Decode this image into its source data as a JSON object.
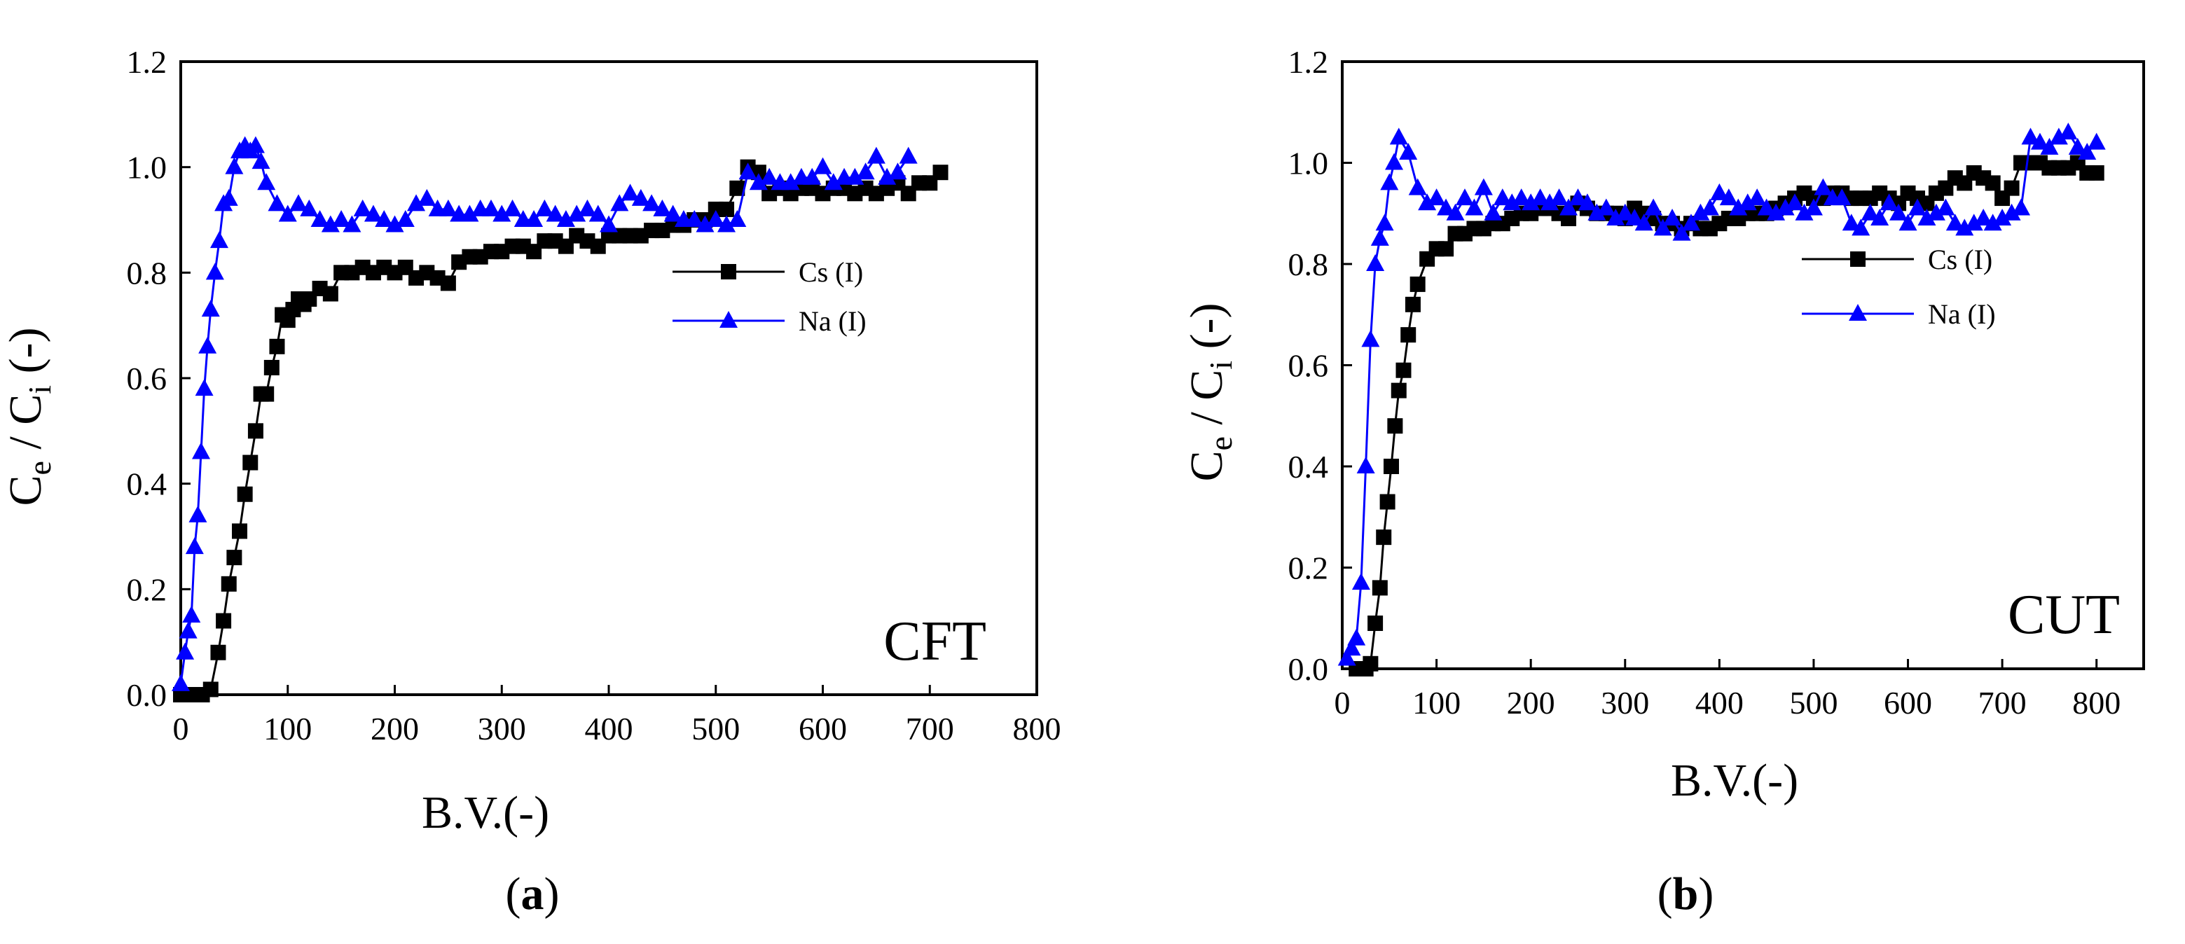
{
  "figure": {
    "panels": [
      {
        "caption": "(a)",
        "caption_letter": "a",
        "annotation": "CFT"
      },
      {
        "caption": "(b)",
        "caption_letter": "b",
        "annotation": "CUT"
      }
    ]
  },
  "colors": {
    "cs": "#000000",
    "na": "#0000ff"
  },
  "chart_data": [
    {
      "type": "line",
      "title": "",
      "annotation": "CFT",
      "xlabel": "B.V.(-)",
      "ylabel": {
        "base1": "C",
        "sub1": "e",
        "mid": " / C",
        "sub2": "i",
        "tail": " (-)"
      },
      "xlim": [
        0,
        800
      ],
      "ylim": [
        0.0,
        1.2
      ],
      "xticks": [
        0,
        100,
        200,
        300,
        400,
        500,
        600,
        700,
        800
      ],
      "yticks": [
        0.0,
        0.2,
        0.4,
        0.6,
        0.8,
        1.0,
        1.2
      ],
      "xtick_labels": [
        "0",
        "100",
        "200",
        "300",
        "400",
        "500",
        "600",
        "700",
        "800"
      ],
      "ytick_labels": [
        "0.0",
        "0.2",
        "0.4",
        "0.6",
        "0.8",
        "1.0",
        "1.2"
      ],
      "legend_position": "center-right",
      "series": [
        {
          "name": "Cs (I)",
          "color": "#000000",
          "marker": "square",
          "x": [
            0,
            10,
            20,
            28,
            35,
            40,
            45,
            50,
            55,
            60,
            65,
            70,
            75,
            80,
            85,
            90,
            95,
            100,
            105,
            110,
            115,
            120,
            130,
            140,
            150,
            160,
            170,
            180,
            190,
            200,
            210,
            220,
            230,
            240,
            250,
            260,
            270,
            280,
            290,
            300,
            310,
            320,
            330,
            340,
            350,
            360,
            370,
            380,
            390,
            400,
            410,
            420,
            430,
            440,
            450,
            460,
            470,
            480,
            490,
            500,
            510,
            520,
            530,
            540,
            550,
            560,
            570,
            580,
            590,
            600,
            610,
            620,
            630,
            640,
            650,
            660,
            670,
            680,
            690,
            700,
            710
          ],
          "y": [
            0.0,
            0.0,
            0.0,
            0.01,
            0.08,
            0.14,
            0.21,
            0.26,
            0.31,
            0.38,
            0.44,
            0.5,
            0.57,
            0.57,
            0.62,
            0.66,
            0.72,
            0.71,
            0.73,
            0.75,
            0.74,
            0.75,
            0.77,
            0.76,
            0.8,
            0.8,
            0.81,
            0.8,
            0.81,
            0.8,
            0.81,
            0.79,
            0.8,
            0.79,
            0.78,
            0.82,
            0.83,
            0.83,
            0.84,
            0.84,
            0.85,
            0.85,
            0.84,
            0.86,
            0.86,
            0.85,
            0.87,
            0.86,
            0.85,
            0.87,
            0.87,
            0.87,
            0.87,
            0.88,
            0.88,
            0.89,
            0.89,
            0.9,
            0.9,
            0.92,
            0.92,
            0.96,
            1.0,
            0.99,
            0.95,
            0.96,
            0.95,
            0.96,
            0.96,
            0.95,
            0.96,
            0.96,
            0.95,
            0.96,
            0.95,
            0.96,
            0.97,
            0.95,
            0.97,
            0.97,
            0.99
          ]
        },
        {
          "name": "Na (I)",
          "color": "#0000ff",
          "marker": "triangle",
          "x": [
            0,
            4,
            7,
            10,
            13,
            16,
            19,
            22,
            25,
            28,
            32,
            36,
            40,
            45,
            50,
            55,
            60,
            65,
            70,
            75,
            80,
            90,
            100,
            110,
            120,
            130,
            140,
            150,
            160,
            170,
            180,
            190,
            200,
            210,
            220,
            230,
            240,
            250,
            260,
            270,
            280,
            290,
            300,
            310,
            320,
            330,
            340,
            350,
            360,
            370,
            380,
            390,
            400,
            410,
            420,
            430,
            440,
            450,
            460,
            470,
            480,
            490,
            500,
            510,
            520,
            530,
            540,
            550,
            560,
            570,
            580,
            590,
            600,
            610,
            620,
            630,
            640,
            650,
            660,
            670,
            680
          ],
          "y": [
            0.02,
            0.08,
            0.12,
            0.15,
            0.28,
            0.34,
            0.46,
            0.58,
            0.66,
            0.73,
            0.8,
            0.86,
            0.93,
            0.94,
            1.0,
            1.03,
            1.04,
            1.03,
            1.04,
            1.01,
            0.97,
            0.93,
            0.91,
            0.93,
            0.92,
            0.9,
            0.89,
            0.9,
            0.89,
            0.92,
            0.91,
            0.9,
            0.89,
            0.9,
            0.93,
            0.94,
            0.92,
            0.92,
            0.91,
            0.91,
            0.92,
            0.92,
            0.91,
            0.92,
            0.9,
            0.9,
            0.92,
            0.91,
            0.9,
            0.91,
            0.92,
            0.91,
            0.89,
            0.93,
            0.95,
            0.94,
            0.93,
            0.92,
            0.91,
            0.9,
            0.9,
            0.89,
            0.9,
            0.89,
            0.9,
            0.99,
            0.97,
            0.98,
            0.97,
            0.97,
            0.98,
            0.98,
            1.0,
            0.97,
            0.98,
            0.98,
            0.99,
            1.02,
            0.98,
            0.99,
            1.02
          ]
        }
      ]
    },
    {
      "type": "line",
      "title": "",
      "annotation": "CUT",
      "xlabel": "B.V.(-)",
      "ylabel": {
        "base1": "C",
        "sub1": "e",
        "mid": " / C",
        "sub2": "i",
        "tail": " (-)"
      },
      "xlim": [
        0,
        850
      ],
      "ylim": [
        0.0,
        1.2
      ],
      "xticks": [
        0,
        100,
        200,
        300,
        400,
        500,
        600,
        700,
        800
      ],
      "yticks": [
        0.0,
        0.2,
        0.4,
        0.6,
        0.8,
        1.0,
        1.2
      ],
      "xtick_labels": [
        "0",
        "100",
        "200",
        "300",
        "400",
        "500",
        "600",
        "700",
        "800"
      ],
      "ytick_labels": [
        "0.0",
        "0.2",
        "0.4",
        "0.6",
        "0.8",
        "1.0",
        "1.2"
      ],
      "legend_position": "center-right",
      "series": [
        {
          "name": "Cs (I)",
          "color": "#000000",
          "marker": "square",
          "x": [
            15,
            20,
            25,
            30,
            35,
            40,
            44,
            48,
            52,
            56,
            60,
            65,
            70,
            75,
            80,
            90,
            100,
            110,
            120,
            130,
            140,
            150,
            160,
            170,
            180,
            190,
            200,
            210,
            220,
            230,
            240,
            250,
            260,
            270,
            280,
            290,
            300,
            310,
            320,
            330,
            340,
            350,
            360,
            370,
            380,
            390,
            400,
            410,
            420,
            430,
            440,
            450,
            460,
            470,
            480,
            490,
            500,
            510,
            520,
            530,
            540,
            550,
            560,
            570,
            580,
            590,
            600,
            610,
            620,
            630,
            640,
            650,
            660,
            670,
            680,
            690,
            700,
            710,
            720,
            730,
            740,
            750,
            760,
            770,
            780,
            790,
            800
          ],
          "y": [
            0.0,
            0.0,
            0.0,
            0.01,
            0.09,
            0.16,
            0.26,
            0.33,
            0.4,
            0.48,
            0.55,
            0.59,
            0.66,
            0.72,
            0.76,
            0.81,
            0.83,
            0.83,
            0.86,
            0.86,
            0.87,
            0.87,
            0.88,
            0.88,
            0.89,
            0.9,
            0.9,
            0.91,
            0.91,
            0.9,
            0.89,
            0.92,
            0.91,
            0.9,
            0.9,
            0.9,
            0.89,
            0.91,
            0.9,
            0.89,
            0.88,
            0.88,
            0.87,
            0.88,
            0.87,
            0.87,
            0.88,
            0.89,
            0.89,
            0.9,
            0.9,
            0.9,
            0.91,
            0.92,
            0.93,
            0.94,
            0.93,
            0.93,
            0.94,
            0.94,
            0.93,
            0.93,
            0.93,
            0.94,
            0.93,
            0.92,
            0.94,
            0.93,
            0.92,
            0.94,
            0.95,
            0.97,
            0.96,
            0.98,
            0.97,
            0.96,
            0.93,
            0.95,
            1.0,
            1.0,
            1.0,
            0.99,
            0.99,
            0.99,
            1.0,
            0.98,
            0.98
          ]
        },
        {
          "name": "Na (I)",
          "color": "#0000ff",
          "marker": "triangle",
          "x": [
            5,
            10,
            15,
            20,
            25,
            30,
            35,
            40,
            45,
            50,
            55,
            60,
            70,
            80,
            90,
            100,
            110,
            120,
            130,
            140,
            150,
            160,
            170,
            180,
            190,
            200,
            210,
            220,
            230,
            240,
            250,
            260,
            270,
            280,
            290,
            300,
            310,
            320,
            330,
            340,
            350,
            360,
            370,
            380,
            390,
            400,
            410,
            420,
            430,
            440,
            450,
            460,
            470,
            480,
            490,
            500,
            510,
            520,
            530,
            540,
            550,
            560,
            570,
            580,
            590,
            600,
            610,
            620,
            630,
            640,
            650,
            660,
            670,
            680,
            690,
            700,
            710,
            720,
            730,
            740,
            750,
            760,
            770,
            780,
            790,
            800
          ],
          "y": [
            0.02,
            0.04,
            0.06,
            0.17,
            0.4,
            0.65,
            0.8,
            0.85,
            0.88,
            0.96,
            1.0,
            1.05,
            1.02,
            0.95,
            0.92,
            0.93,
            0.91,
            0.9,
            0.93,
            0.91,
            0.95,
            0.9,
            0.93,
            0.92,
            0.93,
            0.92,
            0.93,
            0.92,
            0.93,
            0.91,
            0.93,
            0.92,
            0.9,
            0.91,
            0.89,
            0.9,
            0.89,
            0.88,
            0.91,
            0.87,
            0.89,
            0.86,
            0.88,
            0.9,
            0.91,
            0.94,
            0.93,
            0.91,
            0.92,
            0.93,
            0.91,
            0.9,
            0.91,
            0.92,
            0.9,
            0.91,
            0.95,
            0.93,
            0.93,
            0.88,
            0.87,
            0.9,
            0.89,
            0.92,
            0.9,
            0.88,
            0.91,
            0.89,
            0.9,
            0.91,
            0.88,
            0.87,
            0.88,
            0.89,
            0.88,
            0.89,
            0.9,
            0.91,
            1.05,
            1.04,
            1.03,
            1.05,
            1.06,
            1.03,
            1.02,
            1.04
          ]
        }
      ]
    }
  ]
}
